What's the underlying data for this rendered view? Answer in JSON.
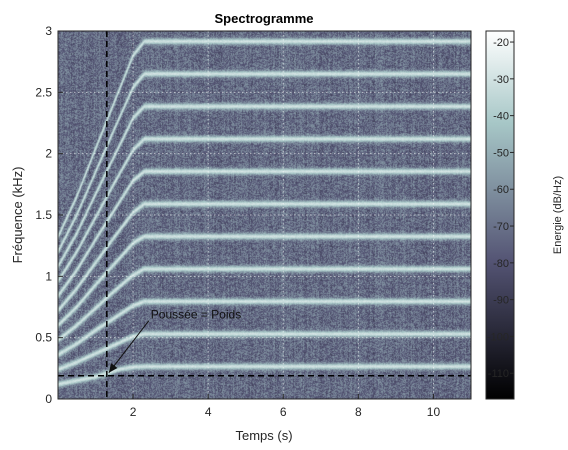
{
  "chart_data": {
    "type": "heatmap",
    "title": "Spectrogramme",
    "xlabel": "Temps (s)",
    "ylabel": "Fréquence (kHz)",
    "xlim": [
      0,
      11
    ],
    "ylim": [
      0,
      3
    ],
    "x_ticks": [
      2,
      4,
      6,
      8,
      10
    ],
    "y_ticks": [
      0,
      0.5,
      1,
      1.5,
      2,
      2.5,
      3
    ],
    "grid": true,
    "colormap": "bone",
    "colorbar": {
      "label": "Energie (dB/Hz)",
      "range": [
        -117,
        -17
      ],
      "ticks": [
        -20,
        -30,
        -40,
        -50,
        -60,
        -70,
        -80,
        -90,
        -100,
        -110
      ]
    },
    "series": [
      {
        "t": [
          0,
          0.5,
          1.0,
          1.3,
          1.6,
          2.0,
          2.3,
          3,
          11
        ],
        "f_khz": [
          0.12,
          0.15,
          0.18,
          0.21,
          0.24,
          0.26,
          0.265,
          0.265,
          0.265
        ]
      },
      {
        "t": [
          0,
          0.5,
          1.0,
          1.5,
          2.0,
          2.3,
          3,
          11
        ],
        "f_khz": [
          0.24,
          0.3,
          0.37,
          0.44,
          0.51,
          0.53,
          0.53,
          0.53
        ]
      },
      {
        "t": [
          0,
          0.5,
          1.0,
          1.5,
          2.0,
          2.3,
          3,
          11
        ],
        "f_khz": [
          0.36,
          0.45,
          0.56,
          0.66,
          0.76,
          0.795,
          0.795,
          0.795
        ]
      },
      {
        "t": [
          0,
          0.5,
          1.0,
          1.5,
          2.0,
          2.3,
          3,
          11
        ],
        "f_khz": [
          0.48,
          0.6,
          0.74,
          0.88,
          1.01,
          1.06,
          1.06,
          1.06
        ]
      },
      {
        "t": [
          0,
          0.5,
          1.0,
          1.5,
          2.0,
          2.3,
          3,
          11
        ],
        "f_khz": [
          0.6,
          0.75,
          0.93,
          1.1,
          1.27,
          1.325,
          1.325,
          1.325
        ]
      },
      {
        "t": [
          0,
          0.5,
          1.0,
          1.5,
          2.0,
          2.3,
          3,
          11
        ],
        "f_khz": [
          0.72,
          0.9,
          1.11,
          1.32,
          1.52,
          1.59,
          1.59,
          1.59
        ]
      },
      {
        "t": [
          0,
          0.5,
          1.0,
          1.5,
          2.0,
          2.3,
          3,
          11
        ],
        "f_khz": [
          0.84,
          1.05,
          1.3,
          1.54,
          1.78,
          1.855,
          1.855,
          1.855
        ]
      },
      {
        "t": [
          0,
          0.5,
          1.0,
          1.5,
          2.0,
          2.3,
          3,
          11
        ],
        "f_khz": [
          0.96,
          1.2,
          1.48,
          1.76,
          2.03,
          2.12,
          2.12,
          2.12
        ]
      },
      {
        "t": [
          0,
          0.5,
          1.0,
          1.5,
          2.0,
          2.3,
          3,
          11
        ],
        "f_khz": [
          1.08,
          1.35,
          1.67,
          1.98,
          2.29,
          2.385,
          2.385,
          2.385
        ]
      },
      {
        "t": [
          0,
          0.5,
          1.0,
          1.5,
          2.0,
          2.3,
          3,
          11
        ],
        "f_khz": [
          1.2,
          1.5,
          1.85,
          2.2,
          2.54,
          2.65,
          2.65,
          2.65
        ]
      },
      {
        "t": [
          0,
          0.5,
          1.0,
          1.5,
          2.0,
          2.3,
          3,
          11
        ],
        "f_khz": [
          1.32,
          1.65,
          2.04,
          2.42,
          2.8,
          2.915,
          2.915,
          2.915
        ]
      }
    ],
    "reference_lines": [
      {
        "axis": "x",
        "value": 1.3
      },
      {
        "axis": "y",
        "value": 0.19
      }
    ],
    "annotations": [
      {
        "text": "Poussée = Poids",
        "t": 1.3,
        "f_khz": 0.19
      }
    ],
    "background_db": -72,
    "ridge_db": -30
  }
}
